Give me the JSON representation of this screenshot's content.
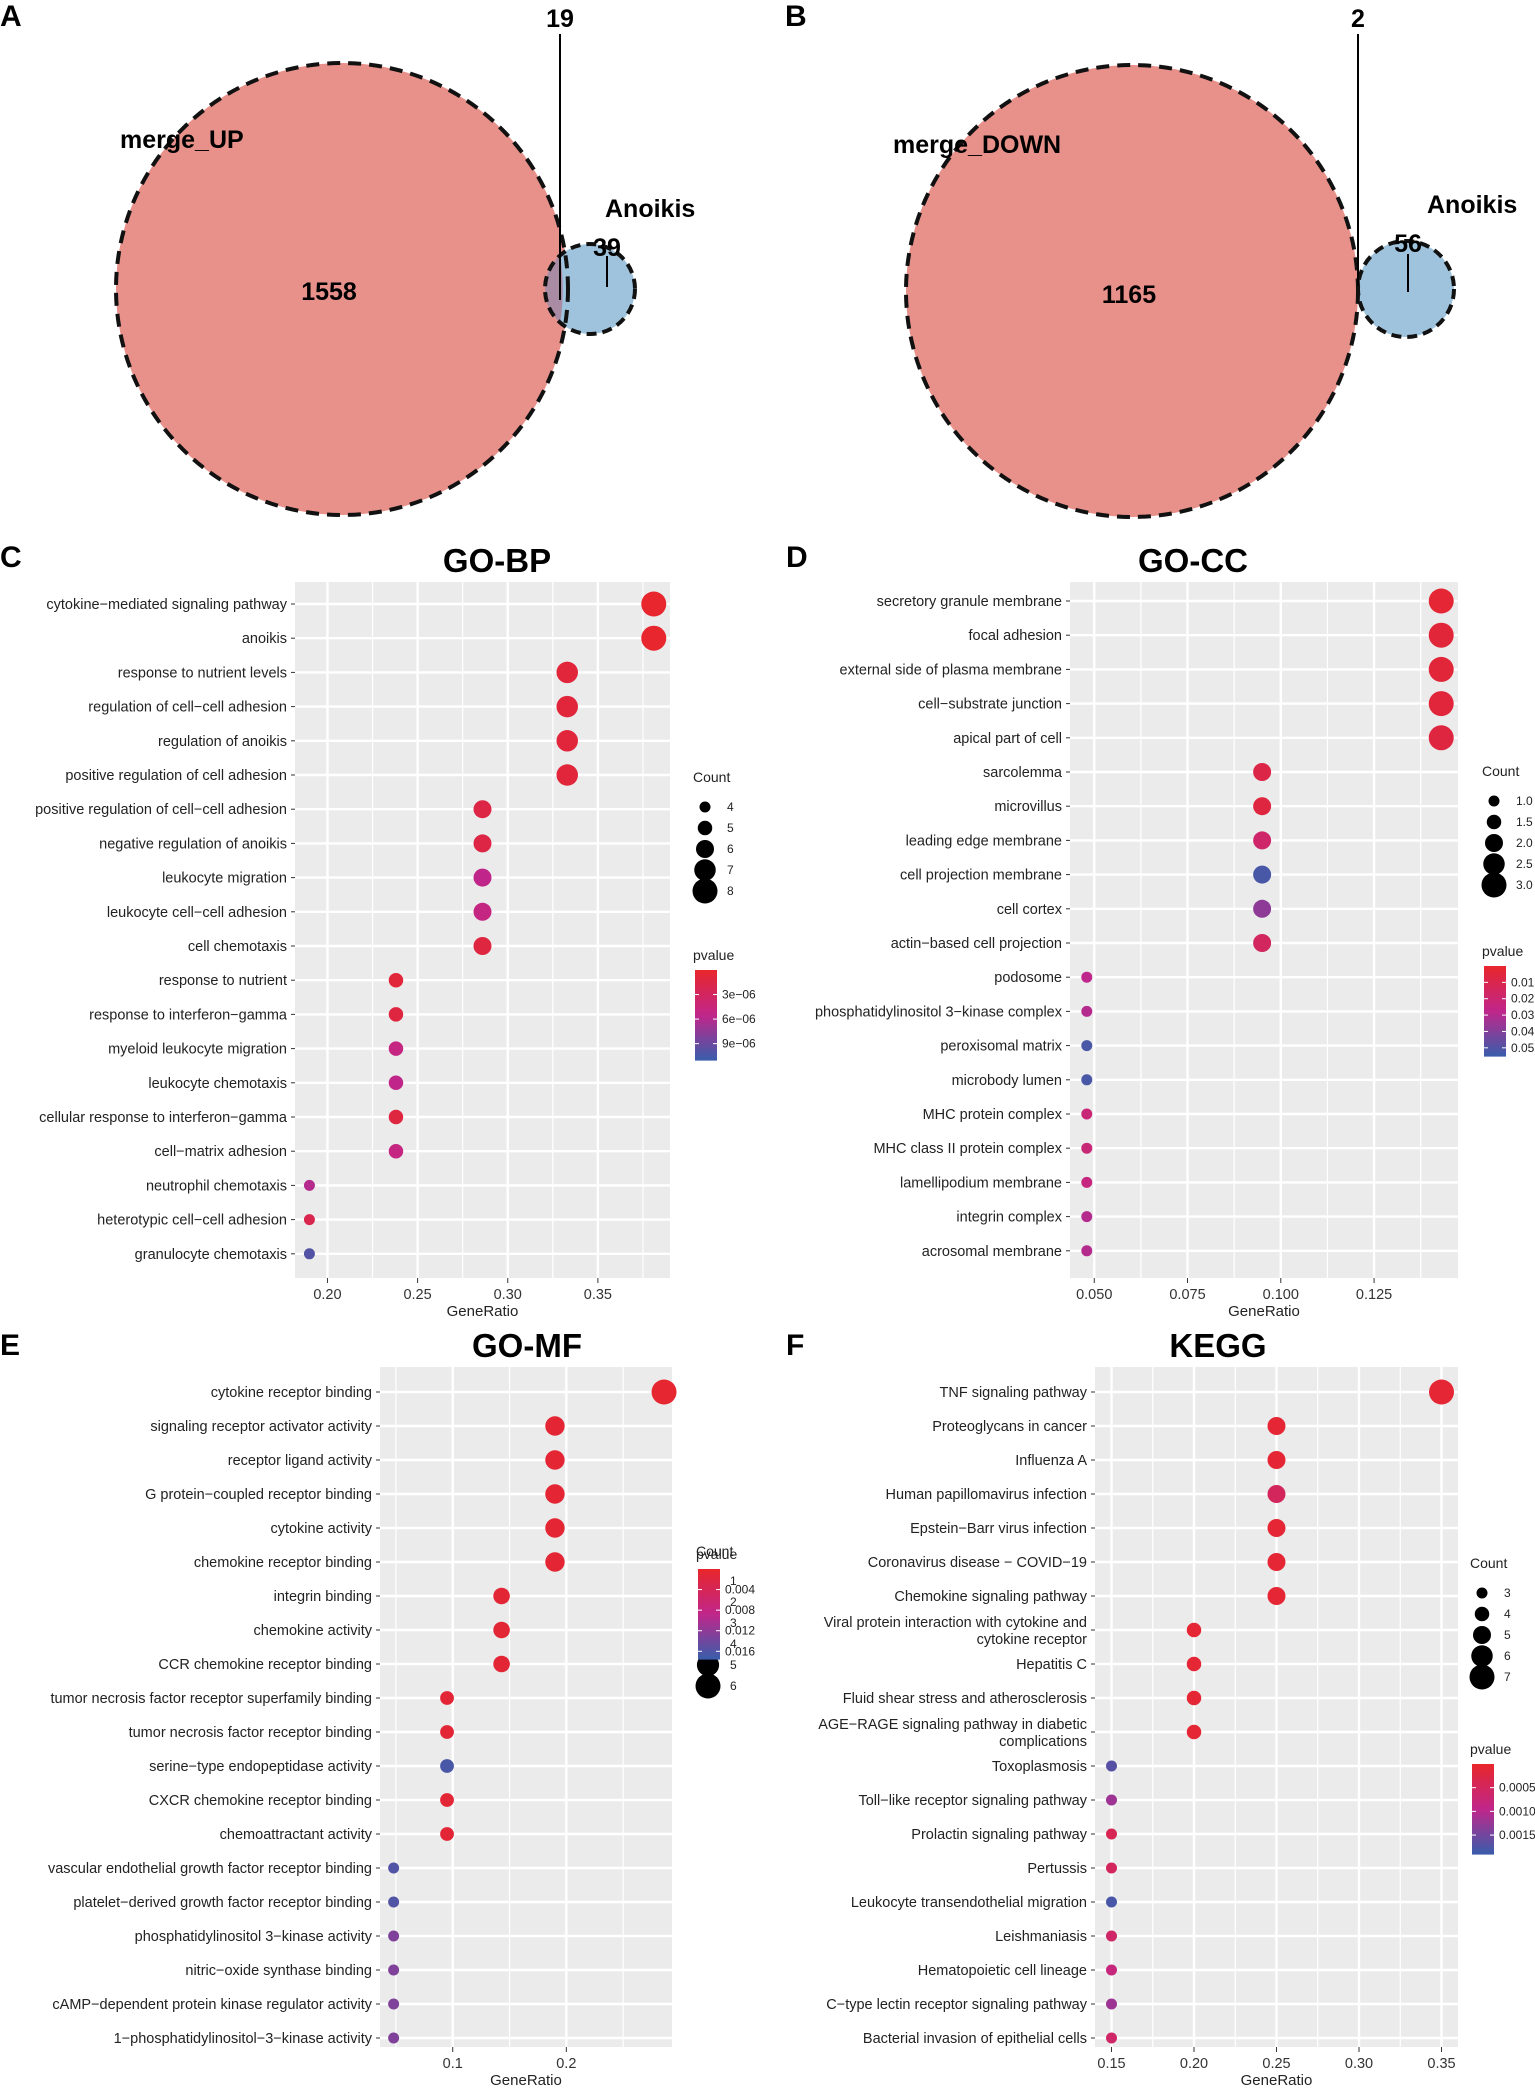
{
  "venn": [
    {
      "panel": "A",
      "left_label": "merge_UP",
      "right_label": "Anoikis",
      "left_only": "1558",
      "overlap": "19",
      "right_only": "39"
    },
    {
      "panel": "B",
      "left_label": "merge_DOWN",
      "right_label": "Anoikis",
      "left_only": "1165",
      "overlap": "2",
      "right_only": "56"
    }
  ],
  "colors": {
    "venn_left": "#e8918b",
    "venn_right": "#9fc3dc",
    "venn_overlap": "#a98ba4",
    "pvalue_low": "#e8262b",
    "pvalue_mid": "#c0268a",
    "pvalue_high": "#3a5dab",
    "panel_bg": "#ebebeb",
    "grid": "#ffffff"
  },
  "chart_data": [
    {
      "panel": "C",
      "type": "scatter",
      "title": "GO-BP",
      "xlabel": "GeneRatio",
      "xlim": [
        0.182,
        0.39
      ],
      "xticks": [
        0.2,
        0.25,
        0.3,
        0.35
      ],
      "xtick_labels": [
        "0.20",
        "0.25",
        "0.30",
        "0.35"
      ],
      "categories": [
        "cytokine−mediated signaling pathway",
        "anoikis",
        "response to nutrient levels",
        "regulation of cell−cell adhesion",
        "regulation of anoikis",
        "positive regulation of cell adhesion",
        "positive regulation of cell−cell adhesion",
        "negative regulation of anoikis",
        "leukocyte migration",
        "leukocyte cell−cell adhesion",
        "cell chemotaxis",
        "response to nutrient",
        "response to interferon−gamma",
        "myeloid leukocyte migration",
        "leukocyte chemotaxis",
        "cellular response to interferon−gamma",
        "cell−matrix adhesion",
        "neutrophil chemotaxis",
        "heterotypic cell−cell adhesion",
        "granulocyte chemotaxis"
      ],
      "x": [
        0.381,
        0.381,
        0.333,
        0.333,
        0.333,
        0.333,
        0.286,
        0.286,
        0.286,
        0.286,
        0.286,
        0.238,
        0.238,
        0.238,
        0.238,
        0.238,
        0.238,
        0.19,
        0.19,
        0.19
      ],
      "count": [
        8,
        8,
        7,
        7,
        7,
        7,
        6,
        6,
        6,
        6,
        6,
        5,
        5,
        5,
        5,
        5,
        5,
        4,
        4,
        4
      ],
      "pvalue": [
        1e-07,
        1e-07,
        1e-06,
        1e-06,
        1e-06,
        1e-06,
        1.5e-06,
        1.5e-06,
        5.5e-06,
        5e-06,
        1.2e-06,
        1e-06,
        1.2e-06,
        5e-06,
        5.5e-06,
        1.2e-06,
        5e-06,
        6e-06,
        2e-06,
        1e-05
      ],
      "size_legend": {
        "title": "Count",
        "values": [
          4,
          5,
          6,
          7,
          8
        ],
        "labels": [
          "4",
          "5",
          "6",
          "7",
          "8"
        ],
        "range": [
          4,
          8
        ]
      },
      "color_legend": {
        "title": "pvalue",
        "range": [
          0,
          1.1e-05
        ],
        "ticks": [
          3e-06,
          6e-06,
          9e-06
        ],
        "labels": [
          "3e−06",
          "6e−06",
          "9e−06"
        ]
      }
    },
    {
      "panel": "D",
      "type": "scatter",
      "title": "GO-CC",
      "xlabel": "GeneRatio",
      "xlim": [
        0.0435,
        0.1475
      ],
      "xticks": [
        0.05,
        0.075,
        0.1,
        0.125
      ],
      "xtick_labels": [
        "0.050",
        "0.075",
        "0.100",
        "0.125"
      ],
      "categories": [
        "secretory granule membrane",
        "focal adhesion",
        "external side of plasma membrane",
        "cell−substrate junction",
        "apical part of cell",
        "sarcolemma",
        "microvillus",
        "leading edge membrane",
        "cell projection membrane",
        "cell cortex",
        "actin−based cell projection",
        "podosome",
        "phosphatidylinositol 3−kinase complex",
        "peroxisomal matrix",
        "microbody lumen",
        "MHC protein complex",
        "MHC class II protein complex",
        "lamellipodium membrane",
        "integrin complex",
        "acrosomal membrane"
      ],
      "x": [
        0.143,
        0.143,
        0.143,
        0.143,
        0.143,
        0.095,
        0.095,
        0.095,
        0.095,
        0.095,
        0.095,
        0.048,
        0.048,
        0.048,
        0.048,
        0.048,
        0.048,
        0.048,
        0.048,
        0.048
      ],
      "count": [
        3,
        3,
        3,
        3,
        3,
        2,
        2,
        2,
        2,
        2,
        2,
        1,
        1,
        1,
        1,
        1,
        1,
        1,
        1,
        1
      ],
      "pvalue": [
        0.003,
        0.004,
        0.004,
        0.005,
        0.006,
        0.008,
        0.006,
        0.018,
        0.052,
        0.038,
        0.015,
        0.028,
        0.03,
        0.052,
        0.052,
        0.022,
        0.022,
        0.024,
        0.03,
        0.03
      ],
      "size_legend": {
        "title": "Count",
        "values": [
          1.0,
          1.5,
          2.0,
          2.5,
          3.0
        ],
        "labels": [
          "1.0",
          "1.5",
          "2.0",
          "2.5",
          "3.0"
        ],
        "range": [
          1,
          3
        ]
      },
      "color_legend": {
        "title": "pvalue",
        "range": [
          0.0,
          0.055
        ],
        "ticks": [
          0.01,
          0.02,
          0.03,
          0.04,
          0.05
        ],
        "labels": [
          "0.01",
          "0.02",
          "0.03",
          "0.04",
          "0.05"
        ]
      }
    },
    {
      "panel": "E",
      "type": "scatter",
      "title": "GO-MF",
      "xlabel": "GeneRatio",
      "xlim": [
        0.036,
        0.293
      ],
      "xticks": [
        0.1,
        0.2
      ],
      "xtick_labels": [
        "0.1",
        "0.2"
      ],
      "categories": [
        "cytokine receptor binding",
        "signaling receptor activator activity",
        "receptor ligand activity",
        "G protein−coupled receptor binding",
        "cytokine activity",
        "chemokine receptor binding",
        "integrin binding",
        "chemokine activity",
        "CCR chemokine receptor binding",
        "tumor necrosis factor receptor superfamily binding",
        "tumor necrosis factor receptor binding",
        "serine−type endopeptidase activity",
        "CXCR chemokine receptor binding",
        "chemoattractant activity",
        "vascular endothelial growth factor receptor binding",
        "platelet−derived growth factor receptor binding",
        "phosphatidylinositol 3−kinase activity",
        "nitric−oxide synthase binding",
        "cAMP−dependent protein kinase regulator activity",
        "1−phosphatidylinositol−3−kinase activity"
      ],
      "x": [
        0.286,
        0.19,
        0.19,
        0.19,
        0.19,
        0.19,
        0.143,
        0.143,
        0.143,
        0.095,
        0.095,
        0.095,
        0.095,
        0.095,
        0.048,
        0.048,
        0.048,
        0.048,
        0.048,
        0.048
      ],
      "count": [
        6,
        4,
        4,
        4,
        4,
        4,
        3,
        3,
        3,
        2,
        2,
        2,
        2,
        2,
        1,
        1,
        1,
        1,
        1,
        1
      ],
      "pvalue": [
        0.0005,
        0.0008,
        0.0008,
        0.0008,
        0.0008,
        0.0008,
        0.001,
        0.001,
        0.001,
        0.001,
        0.001,
        0.0165,
        0.001,
        0.001,
        0.016,
        0.016,
        0.013,
        0.013,
        0.013,
        0.013
      ],
      "size_legend": {
        "title": "Count",
        "values": [
          1,
          2,
          3,
          4,
          5,
          6
        ],
        "labels": [
          "1",
          "2",
          "3",
          "4",
          "5",
          "6"
        ],
        "range": [
          1,
          6
        ]
      },
      "color_legend": {
        "title": "pvalue",
        "range": [
          0.0,
          0.0175
        ],
        "ticks": [
          0.004,
          0.008,
          0.012,
          0.016
        ],
        "labels": [
          "0.004",
          "0.008",
          "0.012",
          "0.016"
        ]
      }
    },
    {
      "panel": "F",
      "type": "scatter",
      "title": "KEGG",
      "xlabel": "GeneRatio",
      "xlim": [
        0.14,
        0.36
      ],
      "xticks": [
        0.15,
        0.2,
        0.25,
        0.3,
        0.35
      ],
      "xtick_labels": [
        "0.15",
        "0.20",
        "0.25",
        "0.30",
        "0.35"
      ],
      "categories": [
        "TNF signaling pathway",
        "Proteoglycans in cancer",
        "Influenza A",
        "Human papillomavirus infection",
        "Epstein−Barr virus infection",
        "Coronavirus disease − COVID−19",
        "Chemokine signaling pathway",
        "Viral protein interaction with cytokine and cytokine receptor",
        "Hepatitis C",
        "Fluid shear stress and atherosclerosis",
        "AGE−RAGE signaling pathway in diabetic complications",
        "Toxoplasmosis",
        "Toll−like receptor signaling pathway",
        "Prolactin signaling pathway",
        "Pertussis",
        "Leukocyte transendothelial migration",
        "Leishmaniasis",
        "Hematopoietic cell lineage",
        "C−type lectin receptor signaling pathway",
        "Bacterial invasion of epithelial cells"
      ],
      "category_lines": [
        [
          "TNF signaling pathway"
        ],
        [
          "Proteoglycans in cancer"
        ],
        [
          "Influenza A"
        ],
        [
          "Human papillomavirus infection"
        ],
        [
          "Epstein−Barr virus infection"
        ],
        [
          "Coronavirus disease − COVID−19"
        ],
        [
          "Chemokine signaling pathway"
        ],
        [
          "Viral protein interaction with cytokine and",
          "cytokine receptor"
        ],
        [
          "Hepatitis C"
        ],
        [
          "Fluid shear stress and atherosclerosis"
        ],
        [
          "AGE−RAGE signaling pathway in diabetic",
          "complications"
        ],
        [
          "Toxoplasmosis"
        ],
        [
          "Toll−like receptor signaling pathway"
        ],
        [
          "Prolactin signaling pathway"
        ],
        [
          "Pertussis"
        ],
        [
          "Leukocyte transendothelial migration"
        ],
        [
          "Leishmaniasis"
        ],
        [
          "Hematopoietic cell lineage"
        ],
        [
          "C−type lectin receptor signaling pathway"
        ],
        [
          "Bacterial invasion of epithelial cells"
        ]
      ],
      "x": [
        0.35,
        0.25,
        0.25,
        0.25,
        0.25,
        0.25,
        0.25,
        0.2,
        0.2,
        0.2,
        0.2,
        0.15,
        0.15,
        0.15,
        0.15,
        0.15,
        0.15,
        0.15,
        0.15,
        0.15
      ],
      "count": [
        7,
        5,
        5,
        5,
        5,
        5,
        5,
        4,
        4,
        4,
        4,
        3,
        3,
        3,
        3,
        3,
        3,
        3,
        3,
        3
      ],
      "pvalue": [
        0.0001,
        0.0001,
        0.0001,
        0.0005,
        0.0001,
        0.0001,
        0.0001,
        0.0001,
        0.0001,
        0.0001,
        0.0001,
        0.0017,
        0.0012,
        0.0004,
        0.0005,
        0.0018,
        0.0006,
        0.0008,
        0.0012,
        0.0006
      ],
      "size_legend": {
        "title": "Count",
        "values": [
          3,
          4,
          5,
          6,
          7
        ],
        "labels": [
          "3",
          "4",
          "5",
          "6",
          "7"
        ],
        "range": [
          3,
          7
        ]
      },
      "color_legend": {
        "title": "pvalue",
        "range": [
          0.0,
          0.0019
        ],
        "ticks": [
          0.0005,
          0.001,
          0.0015
        ],
        "labels": [
          "0.0005",
          "0.0010",
          "0.0015"
        ]
      }
    }
  ]
}
